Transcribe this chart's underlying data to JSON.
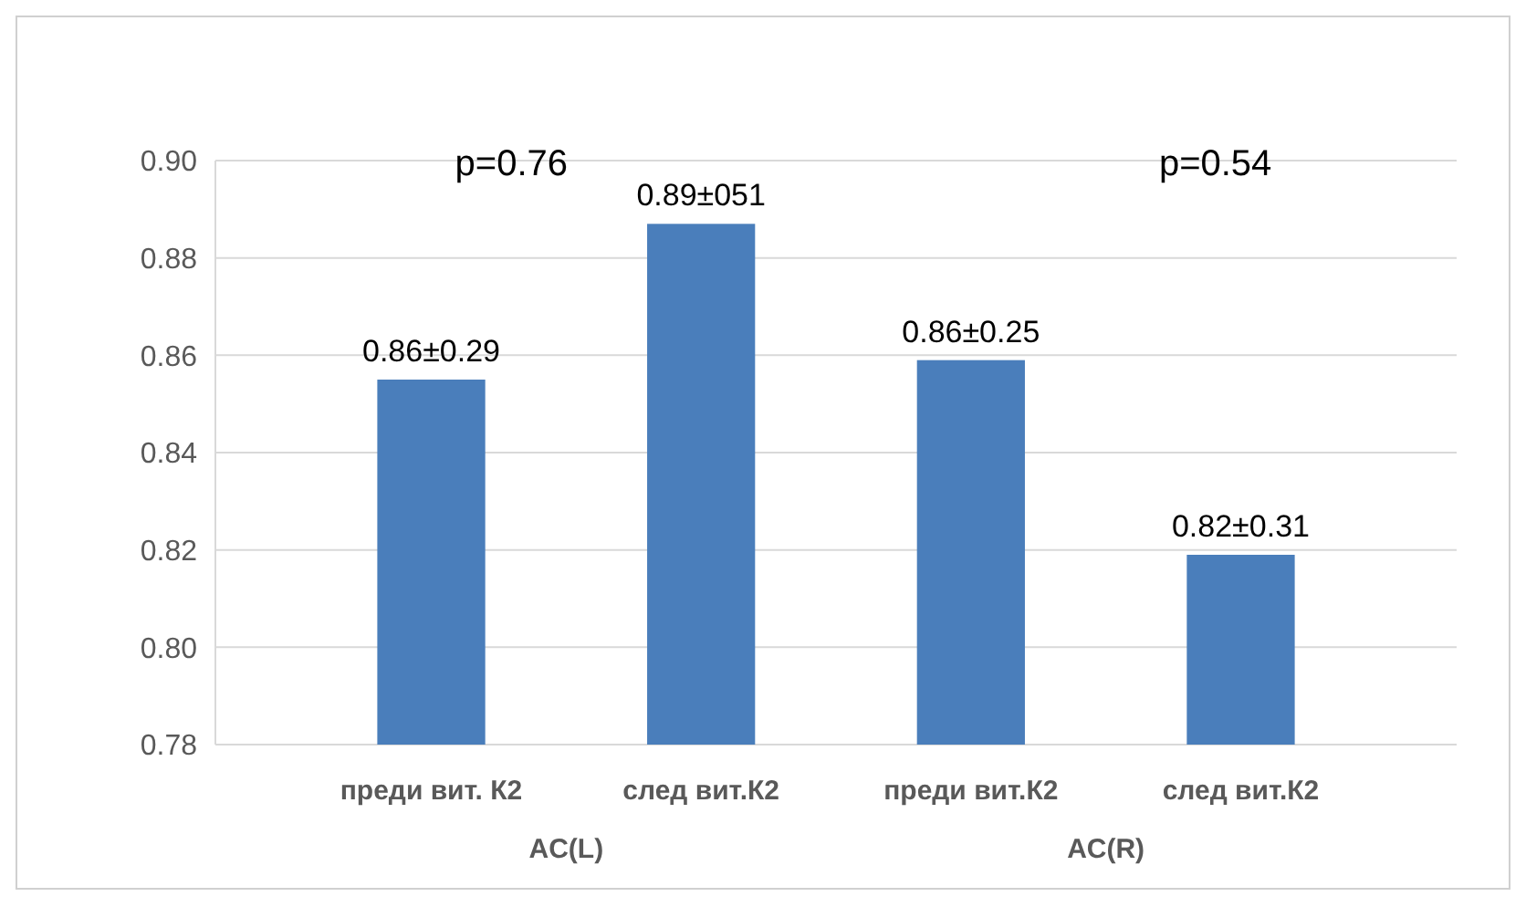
{
  "chart_data": {
    "type": "bar",
    "categories": [
      "преди вит. К2",
      "след вит.К2",
      "преди вит.К2",
      "след вит.К2"
    ],
    "values": [
      0.855,
      0.887,
      0.859,
      0.819
    ],
    "value_labels": [
      "0.86±0.29",
      "0.89±051",
      "0.86±0.25",
      "0.82±0.31"
    ],
    "color": "#4a7ebb",
    "ylim": [
      0.78,
      0.9
    ],
    "yticks": [
      {
        "value": 0.78,
        "label": "0.78"
      },
      {
        "value": 0.8,
        "label": "0.80"
      },
      {
        "value": 0.82,
        "label": "0.82"
      },
      {
        "value": 0.84,
        "label": "0.84"
      },
      {
        "value": 0.86,
        "label": "0.86"
      },
      {
        "value": 0.88,
        "label": "0.88"
      },
      {
        "value": 0.9,
        "label": "0.90"
      }
    ],
    "grid": "y",
    "annotations": [
      "p=0.76",
      "p=0.54",
      "AC(L)",
      "AC(R)"
    ]
  }
}
